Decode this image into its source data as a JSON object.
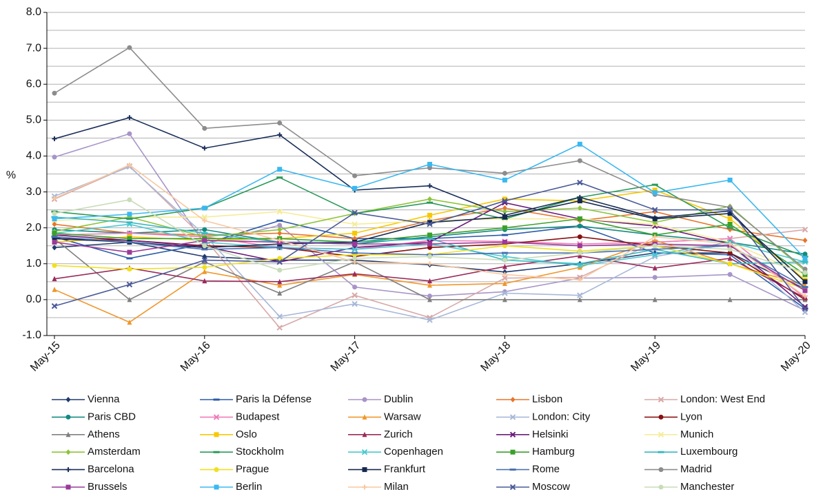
{
  "chart_data": {
    "type": "line",
    "y_label": "%",
    "categories": [
      "May-15",
      null,
      "May-16",
      null,
      "May-17",
      null,
      "May-18",
      null,
      "May-19",
      null,
      "May-20"
    ],
    "ylim": [
      -1,
      8
    ],
    "yticks": [
      {
        "value": -1,
        "label": "-1.0"
      },
      {
        "value": 0,
        "label": "0.0"
      },
      {
        "value": 1,
        "label": "1.0"
      },
      {
        "value": 2,
        "label": "2.0"
      },
      {
        "value": 3,
        "label": "3.0"
      },
      {
        "value": 4,
        "label": "4.0"
      },
      {
        "value": 5,
        "label": "5.0"
      },
      {
        "value": 6,
        "label": "6.0"
      },
      {
        "value": 7,
        "label": "7.0"
      },
      {
        "value": 8,
        "label": "8.0"
      }
    ],
    "minor_yticks": [
      -0.5,
      0.5,
      1.5,
      2.5,
      3.5,
      4.5,
      5.5,
      6.5,
      7.5
    ],
    "grid": true,
    "legend_position": "bottom",
    "series": [
      {
        "name": "Vienna",
        "color": "#1f3a6e",
        "marker": "diamond",
        "values": [
          1.45,
          1.6,
          1.2,
          1.1,
          1.1,
          0.97,
          0.77,
          1.0,
          1.3,
          1.3,
          0.3
        ]
      },
      {
        "name": "Paris la Défense",
        "color": "#2a5aa8",
        "marker": "dash",
        "values": [
          1.75,
          1.15,
          1.55,
          2.2,
          1.7,
          1.7,
          1.8,
          2.05,
          1.3,
          1.25,
          -0.25
        ]
      },
      {
        "name": "Dublin",
        "color": "#a894c8",
        "marker": "circle",
        "values": [
          3.97,
          4.62,
          1.55,
          2.07,
          0.35,
          0.1,
          0.22,
          0.6,
          0.62,
          0.7,
          -0.3
        ]
      },
      {
        "name": "Lisbon",
        "color": "#e8742a",
        "marker": "diamond",
        "values": [
          2.1,
          1.85,
          1.8,
          1.85,
          1.7,
          2.2,
          2.55,
          2.2,
          2.45,
          1.95,
          1.65
        ]
      },
      {
        "name": "London: West End",
        "color": "#d8a8a8",
        "marker": "x",
        "values": [
          2.8,
          3.72,
          1.7,
          -0.78,
          0.12,
          -0.5,
          0.6,
          0.62,
          1.6,
          1.7,
          1.95
        ]
      },
      {
        "name": "Paris CBD",
        "color": "#128a80",
        "marker": "circle",
        "values": [
          1.95,
          1.85,
          1.95,
          1.6,
          1.55,
          1.75,
          1.95,
          2.05,
          1.8,
          1.6,
          1.27
        ]
      },
      {
        "name": "Budapest",
        "color": "#f07ab8",
        "marker": "x",
        "values": [
          1.8,
          1.85,
          1.75,
          1.45,
          1.4,
          1.65,
          1.62,
          1.55,
          1.6,
          1.7,
          0.05
        ]
      },
      {
        "name": "Warsaw",
        "color": "#f0962a",
        "marker": "triangle",
        "values": [
          0.28,
          -0.63,
          0.78,
          0.4,
          0.7,
          0.4,
          0.45,
          0.9,
          1.65,
          1.0,
          0.4
        ]
      },
      {
        "name": "London: City",
        "color": "#a8b8d8",
        "marker": "x",
        "values": [
          2.88,
          3.7,
          1.8,
          -0.47,
          -0.12,
          -0.57,
          0.18,
          0.12,
          1.2,
          1.55,
          -0.35
        ]
      },
      {
        "name": "Lyon",
        "color": "#8a1010",
        "marker": "circle",
        "values": [
          1.7,
          1.65,
          1.5,
          1.45,
          1.2,
          1.45,
          1.55,
          1.75,
          1.5,
          1.3,
          0.0
        ]
      },
      {
        "name": "Athens",
        "color": "#808080",
        "marker": "triangle",
        "values": [
          1.7,
          0.0,
          1.05,
          0.18,
          1.05,
          0.0,
          0.0,
          0.0,
          0.0,
          0.0,
          0.0
        ]
      },
      {
        "name": "Oslo",
        "color": "#f8c800",
        "marker": "square",
        "values": [
          1.6,
          1.75,
          1.65,
          1.7,
          1.85,
          2.35,
          2.8,
          2.75,
          3.05,
          2.25,
          0.55
        ]
      },
      {
        "name": "Zurich",
        "color": "#9a2a5a",
        "marker": "triangle",
        "values": [
          0.58,
          0.88,
          0.52,
          0.5,
          0.72,
          0.52,
          0.92,
          1.22,
          0.88,
          1.15,
          0.05
        ]
      },
      {
        "name": "Helsinki",
        "color": "#6a1a7a",
        "marker": "x",
        "values": [
          1.8,
          1.65,
          1.48,
          1.05,
          1.45,
          1.6,
          2.7,
          2.25,
          2.05,
          1.55,
          -0.2
        ]
      },
      {
        "name": "Munich",
        "color": "#f4ec9a",
        "marker": "x",
        "values": [
          2.2,
          2.3,
          2.3,
          2.45,
          2.1,
          2.2,
          2.25,
          2.25,
          2.1,
          1.6,
          0.7
        ]
      },
      {
        "name": "Amsterdam",
        "color": "#8cc43a",
        "marker": "diamond",
        "values": [
          1.9,
          2.3,
          1.75,
          1.95,
          2.4,
          2.8,
          2.45,
          2.55,
          2.15,
          2.6,
          0.8
        ]
      },
      {
        "name": "Stockholm",
        "color": "#2a9a5a",
        "marker": "dash",
        "values": [
          2.45,
          2.25,
          2.55,
          3.4,
          2.4,
          2.7,
          2.25,
          2.85,
          3.2,
          2.0,
          1.2
        ]
      },
      {
        "name": "Copenhagen",
        "color": "#4ac8d0",
        "marker": "x",
        "values": [
          1.85,
          2.1,
          1.6,
          1.45,
          1.4,
          1.55,
          1.2,
          0.95,
          1.25,
          1.6,
          1.05
        ]
      },
      {
        "name": "Hamburg",
        "color": "#3aa02a",
        "marker": "square",
        "values": [
          1.85,
          1.7,
          1.7,
          1.7,
          1.6,
          1.8,
          2.0,
          2.25,
          1.8,
          2.1,
          0.7
        ]
      },
      {
        "name": "Luxembourg",
        "color": "#3ab8c0",
        "marker": "dash",
        "values": [
          2.3,
          2.15,
          1.85,
          1.6,
          1.6,
          1.7,
          1.1,
          1.0,
          1.4,
          1.0,
          1.05
        ]
      },
      {
        "name": "Barcelona",
        "color": "#1a2e5a",
        "marker": "plus",
        "values": [
          4.48,
          5.07,
          4.22,
          4.59,
          3.05,
          3.17,
          2.35,
          2.85,
          2.28,
          2.47,
          0.3
        ]
      },
      {
        "name": "Prague",
        "color": "#f0e020",
        "marker": "circle",
        "values": [
          0.95,
          0.85,
          0.9,
          1.15,
          1.25,
          1.25,
          1.5,
          1.35,
          1.5,
          1.0,
          0.3
        ]
      },
      {
        "name": "Frankfurt",
        "color": "#14284e",
        "marker": "square",
        "values": [
          1.7,
          1.6,
          1.45,
          1.55,
          1.6,
          2.15,
          2.3,
          2.75,
          2.25,
          2.4,
          0.5
        ]
      },
      {
        "name": "Rome",
        "color": "#4a70b0",
        "marker": "dash",
        "values": [
          1.75,
          1.6,
          1.4,
          1.45,
          1.3,
          1.25,
          1.3,
          1.3,
          1.4,
          1.5,
          0.35
        ]
      },
      {
        "name": "Madrid",
        "color": "#8c8c8c",
        "marker": "circle",
        "values": [
          5.75,
          7.02,
          4.77,
          4.92,
          3.45,
          3.67,
          3.52,
          3.87,
          2.93,
          2.57,
          0.85
        ]
      },
      {
        "name": "Brussels",
        "color": "#9a3a9a",
        "marker": "square",
        "values": [
          1.6,
          1.32,
          1.65,
          1.6,
          1.55,
          1.55,
          1.6,
          1.5,
          1.55,
          1.5,
          0.25
        ]
      },
      {
        "name": "Berlin",
        "color": "#3ab8f0",
        "marker": "square",
        "values": [
          2.25,
          2.38,
          2.55,
          3.63,
          3.1,
          3.77,
          3.33,
          4.33,
          2.98,
          3.33,
          1.15
        ]
      },
      {
        "name": "Milan",
        "color": "#f8c8a0",
        "marker": "plus",
        "values": [
          2.82,
          3.75,
          2.2,
          1.65,
          1.05,
          1.0,
          0.7,
          0.55,
          1.75,
          1.55,
          0.1
        ]
      },
      {
        "name": "Moscow",
        "color": "#4a5a98",
        "marker": "x",
        "values": [
          -0.18,
          0.42,
          1.1,
          1.05,
          2.42,
          2.1,
          2.75,
          3.26,
          2.5,
          2.5,
          -0.25
        ]
      },
      {
        "name": "Manchester",
        "color": "#c8dcb8",
        "marker": "circle",
        "values": [
          2.4,
          2.78,
          1.5,
          0.82,
          1.15,
          1.2,
          1.1,
          1.3,
          1.5,
          1.4,
          0.75
        ]
      }
    ]
  }
}
